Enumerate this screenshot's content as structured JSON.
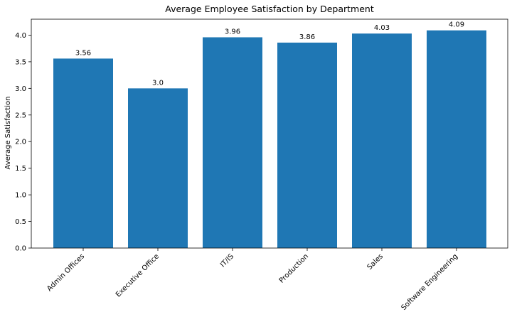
{
  "chart_data": {
    "type": "bar",
    "title": "Average Employee Satisfaction by Department",
    "xlabel": "",
    "ylabel": "Average Satisfaction",
    "categories": [
      "Admin Offices",
      "Executive Office",
      "IT/IS",
      "Production",
      "Sales",
      "Software Engineering"
    ],
    "values": [
      3.56,
      3.0,
      3.96,
      3.86,
      4.03,
      4.09
    ],
    "data_labels": [
      "3.56",
      "3.0",
      "3.96",
      "3.86",
      "4.03",
      "4.09"
    ],
    "ylim": [
      0,
      4.3
    ],
    "yticks": [
      0.0,
      0.5,
      1.0,
      1.5,
      2.0,
      2.5,
      3.0,
      3.5,
      4.0
    ],
    "ytick_labels": [
      "0.0",
      "0.5",
      "1.0",
      "1.5",
      "2.0",
      "2.5",
      "3.0",
      "3.5",
      "4.0"
    ],
    "grid": false,
    "bar_color": "#1f77b4"
  }
}
